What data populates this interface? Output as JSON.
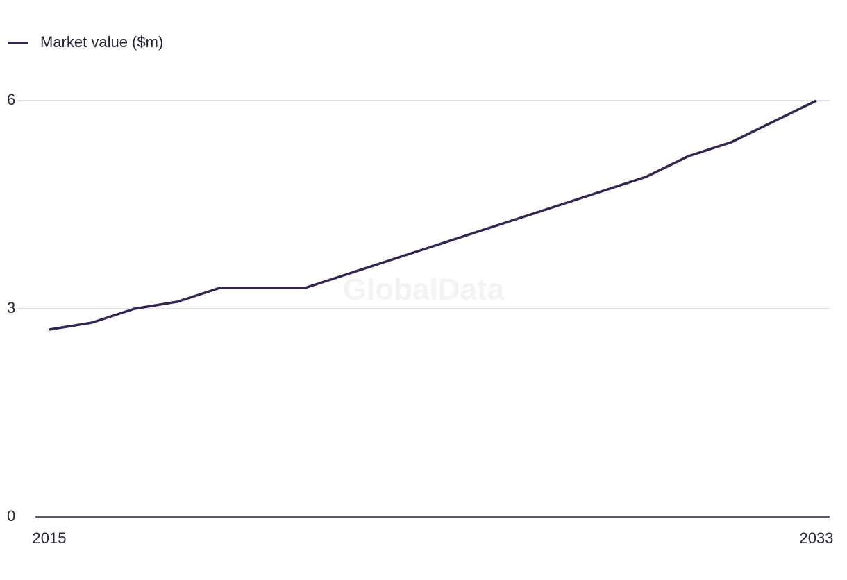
{
  "chart_data": {
    "type": "line",
    "watermark": "GlobalData",
    "x": [
      2015,
      2016,
      2017,
      2018,
      2019,
      2020,
      2021,
      2022,
      2023,
      2024,
      2025,
      2026,
      2027,
      2028,
      2029,
      2030,
      2031,
      2032,
      2033
    ],
    "series": [
      {
        "name": "Market value ($m)",
        "color": "#35264f",
        "values": [
          2.7,
          2.8,
          3.0,
          3.1,
          3.3,
          3.3,
          3.3,
          3.5,
          3.7,
          3.9,
          4.1,
          4.3,
          4.5,
          4.7,
          4.9,
          5.2,
          5.4,
          5.7,
          6.0
        ]
      }
    ],
    "xlim": [
      2015,
      2033
    ],
    "xticks": [
      2015,
      2033
    ],
    "ylim": [
      0,
      6
    ],
    "yticks": [
      0,
      3,
      6
    ],
    "grid": true,
    "legend": "top-left"
  }
}
